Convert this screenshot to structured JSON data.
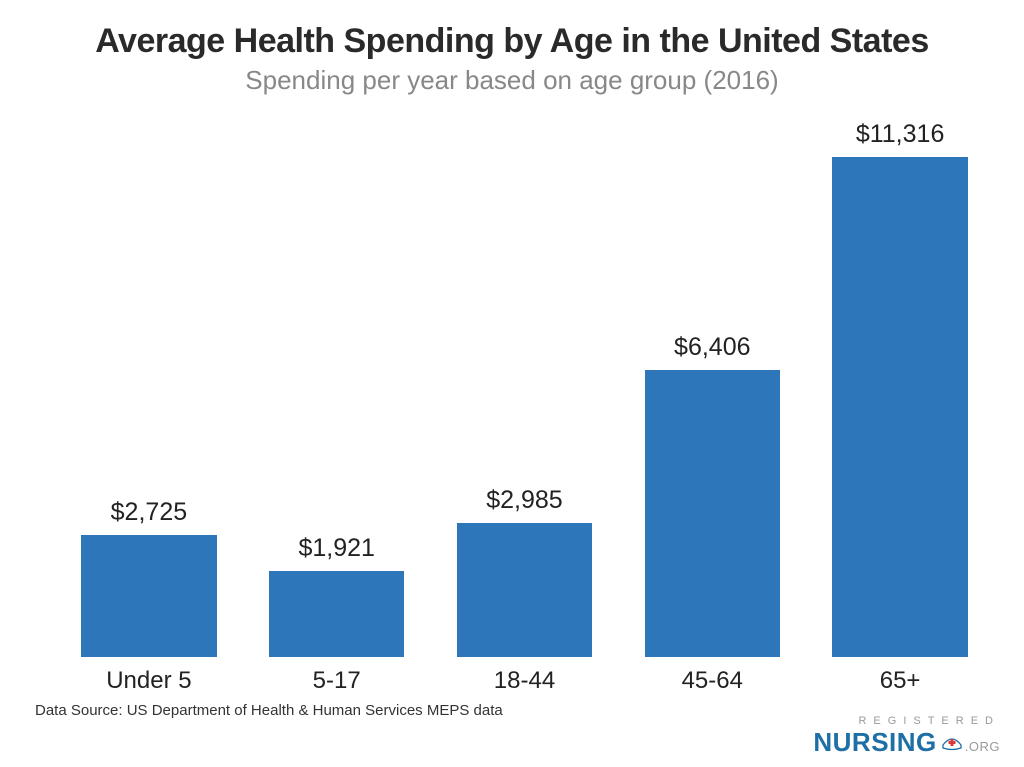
{
  "title": "Average Health Spending by Age in the United States",
  "subtitle": "Spending per year based on age group (2016)",
  "source": "Data Source: US Department of Health & Human Services MEPS data",
  "logo": {
    "top": "REGISTERED",
    "main": "NURSING",
    "suffix": ".ORG"
  },
  "chart": {
    "type": "bar",
    "bar_color": "#2d76b9",
    "background_color": "#ffffff",
    "title_color": "#2a2a2a",
    "subtitle_color": "#888888",
    "label_color": "#222222",
    "title_fontsize": 34,
    "subtitle_fontsize": 26,
    "value_fontsize": 25,
    "label_fontsize": 24,
    "ylim_max": 12000,
    "bar_width_pct": 72,
    "bars": [
      {
        "category": "Under 5",
        "value": 2725,
        "value_label": "$2,725"
      },
      {
        "category": "5-17",
        "value": 1921,
        "value_label": "$1,921"
      },
      {
        "category": "18-44",
        "value": 2985,
        "value_label": "$2,985"
      },
      {
        "category": "45-64",
        "value": 6406,
        "value_label": "$6,406"
      },
      {
        "category": "65+",
        "value": 11316,
        "value_label": "$11,316"
      }
    ]
  }
}
